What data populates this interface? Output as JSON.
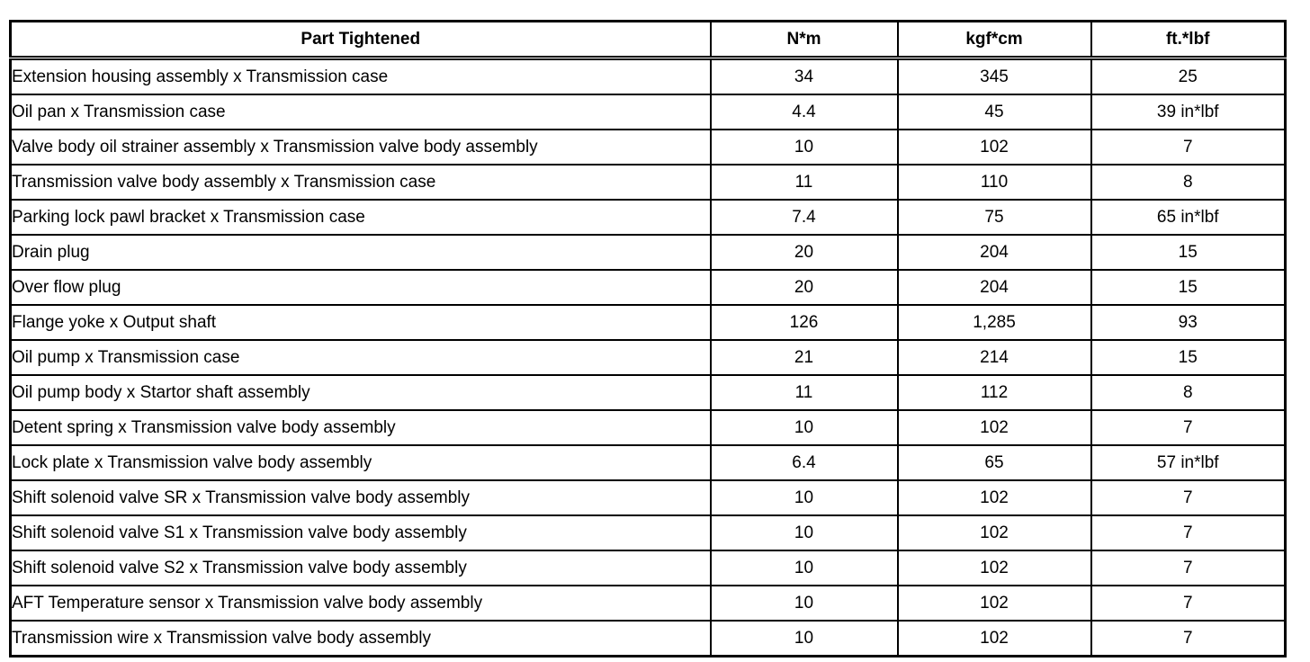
{
  "table": {
    "columns": [
      "Part Tightened",
      "N*m",
      "kgf*cm",
      "ft.*lbf"
    ],
    "rows": [
      [
        "Extension housing assembly x Transmission case",
        "34",
        "345",
        "25"
      ],
      [
        "Oil pan x Transmission case",
        "4.4",
        "45",
        "39 in*lbf"
      ],
      [
        "Valve body oil strainer assembly x Transmission valve body assembly",
        "10",
        "102",
        "7"
      ],
      [
        "Transmission valve body assembly x Transmission case",
        "11",
        "110",
        "8"
      ],
      [
        "Parking lock pawl bracket x Transmission case",
        "7.4",
        "75",
        "65 in*lbf"
      ],
      [
        "Drain plug",
        "20",
        "204",
        "15"
      ],
      [
        "Over flow plug",
        "20",
        "204",
        "15"
      ],
      [
        "Flange yoke x Output shaft",
        "126",
        "1,285",
        "93"
      ],
      [
        "Oil pump x Transmission case",
        "21",
        "214",
        "15"
      ],
      [
        "Oil pump body x Startor shaft assembly",
        "11",
        "112",
        "8"
      ],
      [
        "Detent spring x Transmission valve body assembly",
        "10",
        "102",
        "7"
      ],
      [
        "Lock plate x Transmission valve body assembly",
        "6.4",
        "65",
        "57 in*lbf"
      ],
      [
        "Shift solenoid valve SR x Transmission valve body assembly",
        "10",
        "102",
        "7"
      ],
      [
        "Shift solenoid valve S1 x Transmission valve body assembly",
        "10",
        "102",
        "7"
      ],
      [
        "Shift solenoid valve S2 x Transmission valve body assembly",
        "10",
        "102",
        "7"
      ],
      [
        "AFT Temperature sensor x Transmission valve body assembly",
        "10",
        "102",
        "7"
      ],
      [
        "Transmission wire x Transmission valve body assembly",
        "10",
        "102",
        "7"
      ]
    ]
  },
  "colors": {
    "border": "#000000",
    "text": "#000000",
    "background": "#ffffff"
  }
}
